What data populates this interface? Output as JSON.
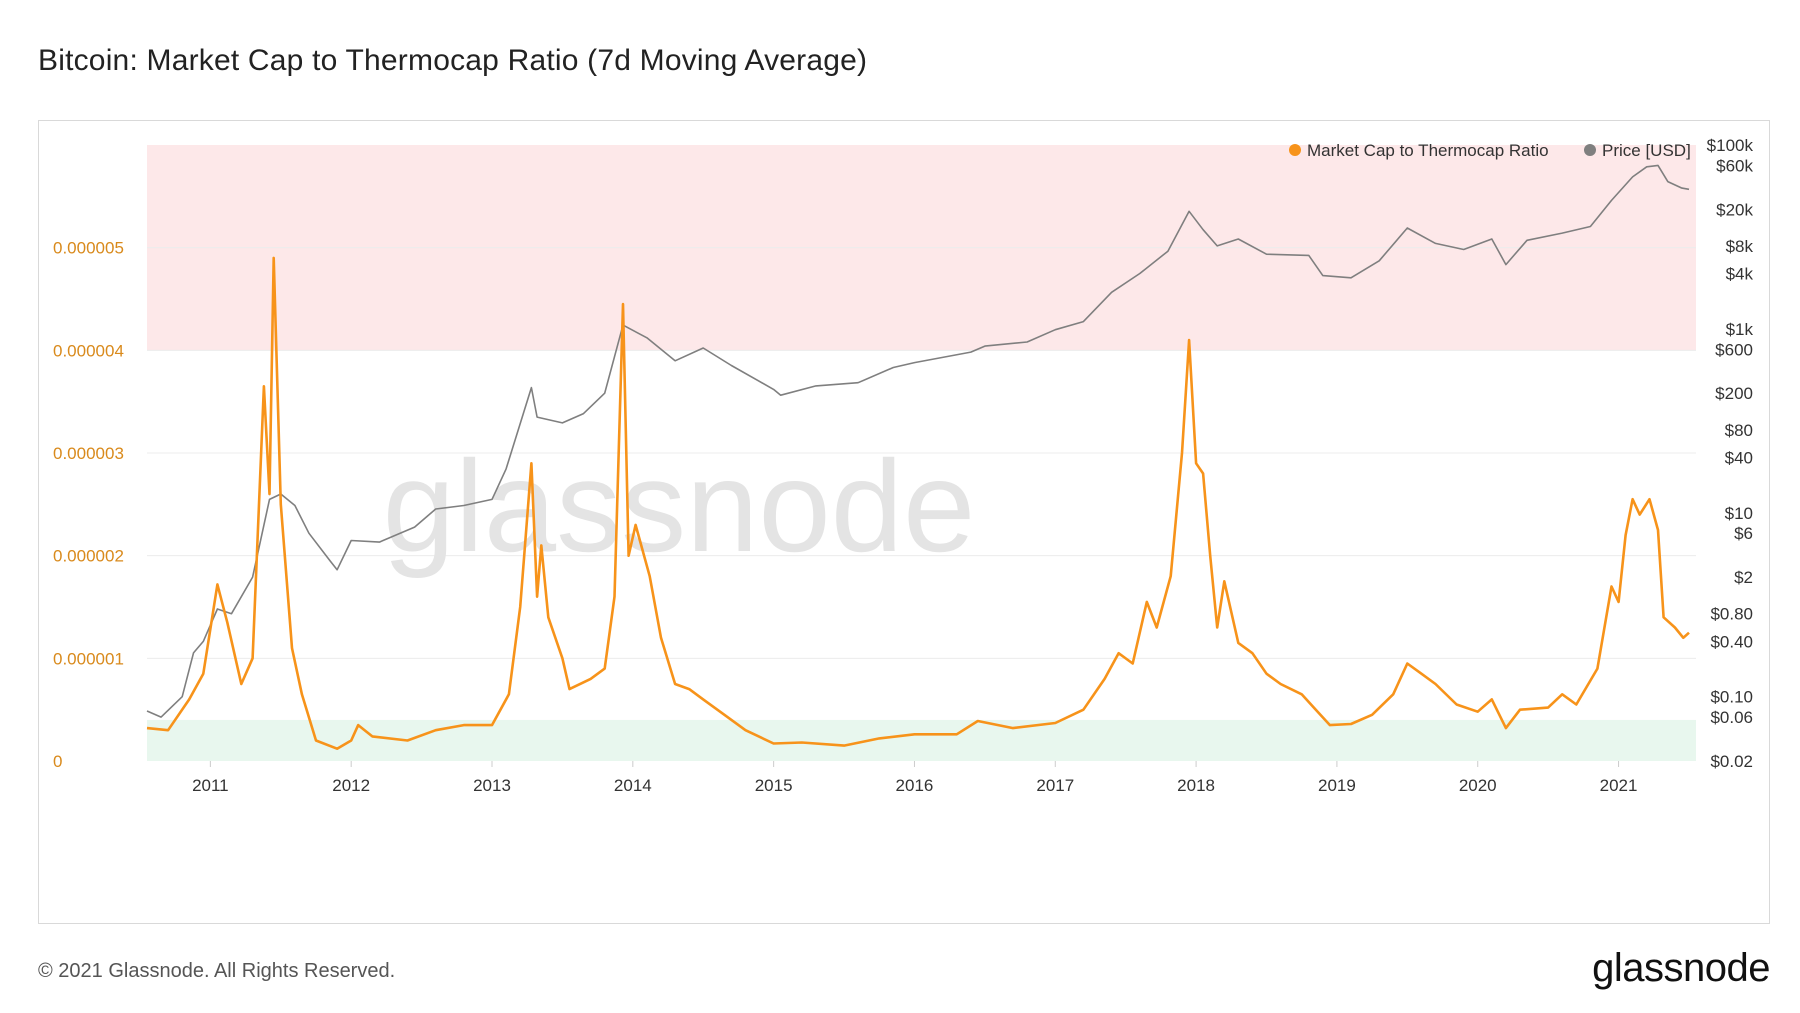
{
  "title": "Bitcoin: Market Cap to Thermocap Ratio (7d Moving Average)",
  "footer": {
    "copyright": "© 2021 Glassnode. All Rights Reserved.",
    "logo": "glassnode"
  },
  "watermark": "glassnode",
  "colors": {
    "ratio": "#f7931a",
    "price": "#7f7f7f",
    "upper_zone": "#fde8e9",
    "lower_zone": "#e8f7ee",
    "left_axis_text": "#d98a1c"
  },
  "chart_data": {
    "type": "line",
    "title": "Bitcoin: Market Cap to Thermocap Ratio (7d Moving Average)",
    "legend": {
      "placement": "top-right",
      "entries": [
        {
          "label": "Market Cap to Thermocap Ratio",
          "color": "#f7931a"
        },
        {
          "label": "Price [USD]",
          "color": "#7f7f7f"
        }
      ]
    },
    "x_range": [
      2010.55,
      2021.55
    ],
    "x_ticks": [
      "2011",
      "2012",
      "2013",
      "2014",
      "2015",
      "2016",
      "2017",
      "2018",
      "2019",
      "2020",
      "2021"
    ],
    "left_axis": {
      "ticks": [
        "0",
        "0.000001",
        "0.000002",
        "0.000003",
        "0.000004",
        "0.000005"
      ],
      "range": [
        0,
        6e-06
      ]
    },
    "right_axis": {
      "scale": "log",
      "ticks": [
        "$100k",
        "$60k",
        "$20k",
        "$8k",
        "$4k",
        "$1k",
        "$600",
        "$200",
        "$80",
        "$40",
        "$10",
        "$6",
        "$2",
        "$0.80",
        "$0.40",
        "$0.10",
        "$0.06",
        "$0.02"
      ],
      "range": [
        0.02,
        100000
      ]
    },
    "zones": [
      {
        "name": "upper",
        "from": 4e-06,
        "to": 6e-06
      },
      {
        "name": "lower",
        "from": 0,
        "to": 4e-07
      }
    ],
    "series": [
      {
        "name": "Market Cap to Thermocap Ratio",
        "axis": "left",
        "points": [
          [
            2010.55,
            3.2e-07
          ],
          [
            2010.7,
            3e-07
          ],
          [
            2010.85,
            6e-07
          ],
          [
            2010.95,
            8.5e-07
          ],
          [
            2011.05,
            1.72e-06
          ],
          [
            2011.12,
            1.35e-06
          ],
          [
            2011.22,
            7.5e-07
          ],
          [
            2011.3,
            1e-06
          ],
          [
            2011.38,
            3.65e-06
          ],
          [
            2011.42,
            2.6e-06
          ],
          [
            2011.45,
            4.9e-06
          ],
          [
            2011.5,
            2.5e-06
          ],
          [
            2011.58,
            1.1e-06
          ],
          [
            2011.65,
            6.5e-07
          ],
          [
            2011.75,
            2e-07
          ],
          [
            2011.9,
            1.2e-07
          ],
          [
            2012.0,
            2e-07
          ],
          [
            2012.05,
            3.5e-07
          ],
          [
            2012.15,
            2.4e-07
          ],
          [
            2012.4,
            2e-07
          ],
          [
            2012.6,
            3e-07
          ],
          [
            2012.8,
            3.5e-07
          ],
          [
            2013.0,
            3.5e-07
          ],
          [
            2013.12,
            6.5e-07
          ],
          [
            2013.2,
            1.5e-06
          ],
          [
            2013.28,
            2.9e-06
          ],
          [
            2013.32,
            1.6e-06
          ],
          [
            2013.35,
            2.1e-06
          ],
          [
            2013.4,
            1.4e-06
          ],
          [
            2013.5,
            1e-06
          ],
          [
            2013.55,
            7e-07
          ],
          [
            2013.7,
            8e-07
          ],
          [
            2013.8,
            9e-07
          ],
          [
            2013.87,
            1.6e-06
          ],
          [
            2013.93,
            4.45e-06
          ],
          [
            2013.97,
            2e-06
          ],
          [
            2014.02,
            2.3e-06
          ],
          [
            2014.12,
            1.8e-06
          ],
          [
            2014.2,
            1.2e-06
          ],
          [
            2014.3,
            7.5e-07
          ],
          [
            2014.4,
            7e-07
          ],
          [
            2014.5,
            6e-07
          ],
          [
            2014.65,
            4.5e-07
          ],
          [
            2014.8,
            3e-07
          ],
          [
            2015.0,
            1.7e-07
          ],
          [
            2015.2,
            1.8e-07
          ],
          [
            2015.5,
            1.5e-07
          ],
          [
            2015.75,
            2.2e-07
          ],
          [
            2016.0,
            2.6e-07
          ],
          [
            2016.3,
            2.6e-07
          ],
          [
            2016.45,
            3.9e-07
          ],
          [
            2016.7,
            3.2e-07
          ],
          [
            2017.0,
            3.7e-07
          ],
          [
            2017.2,
            5e-07
          ],
          [
            2017.35,
            8e-07
          ],
          [
            2017.45,
            1.05e-06
          ],
          [
            2017.55,
            9.5e-07
          ],
          [
            2017.65,
            1.55e-06
          ],
          [
            2017.72,
            1.3e-06
          ],
          [
            2017.82,
            1.8e-06
          ],
          [
            2017.9,
            3e-06
          ],
          [
            2017.95,
            4.1e-06
          ],
          [
            2018.0,
            2.9e-06
          ],
          [
            2018.05,
            2.8e-06
          ],
          [
            2018.1,
            2e-06
          ],
          [
            2018.15,
            1.3e-06
          ],
          [
            2018.2,
            1.75e-06
          ],
          [
            2018.3,
            1.15e-06
          ],
          [
            2018.4,
            1.05e-06
          ],
          [
            2018.5,
            8.5e-07
          ],
          [
            2018.6,
            7.5e-07
          ],
          [
            2018.75,
            6.5e-07
          ],
          [
            2018.85,
            5e-07
          ],
          [
            2018.95,
            3.5e-07
          ],
          [
            2019.1,
            3.6e-07
          ],
          [
            2019.25,
            4.5e-07
          ],
          [
            2019.4,
            6.5e-07
          ],
          [
            2019.5,
            9.5e-07
          ],
          [
            2019.6,
            8.5e-07
          ],
          [
            2019.7,
            7.5e-07
          ],
          [
            2019.85,
            5.5e-07
          ],
          [
            2020.0,
            4.8e-07
          ],
          [
            2020.1,
            6e-07
          ],
          [
            2020.2,
            3.2e-07
          ],
          [
            2020.3,
            5e-07
          ],
          [
            2020.5,
            5.2e-07
          ],
          [
            2020.6,
            6.5e-07
          ],
          [
            2020.7,
            5.5e-07
          ],
          [
            2020.85,
            9e-07
          ],
          [
            2020.95,
            1.7e-06
          ],
          [
            2021.0,
            1.55e-06
          ],
          [
            2021.05,
            2.2e-06
          ],
          [
            2021.1,
            2.55e-06
          ],
          [
            2021.15,
            2.4e-06
          ],
          [
            2021.22,
            2.55e-06
          ],
          [
            2021.28,
            2.25e-06
          ],
          [
            2021.32,
            1.4e-06
          ],
          [
            2021.4,
            1.3e-06
          ],
          [
            2021.46,
            1.2e-06
          ],
          [
            2021.5,
            1.25e-06
          ]
        ]
      },
      {
        "name": "Price [USD]",
        "axis": "right",
        "points": [
          [
            2010.55,
            0.07
          ],
          [
            2010.65,
            0.06
          ],
          [
            2010.8,
            0.1
          ],
          [
            2010.88,
            0.3
          ],
          [
            2010.95,
            0.4
          ],
          [
            2011.05,
            0.9
          ],
          [
            2011.15,
            0.8
          ],
          [
            2011.3,
            2.0
          ],
          [
            2011.42,
            14.0
          ],
          [
            2011.5,
            16.0
          ],
          [
            2011.6,
            12.0
          ],
          [
            2011.7,
            6.0
          ],
          [
            2011.85,
            3.0
          ],
          [
            2011.9,
            2.4
          ],
          [
            2012.0,
            5.0
          ],
          [
            2012.2,
            4.8
          ],
          [
            2012.45,
            7.0
          ],
          [
            2012.6,
            11.0
          ],
          [
            2012.8,
            12.0
          ],
          [
            2013.0,
            14.0
          ],
          [
            2013.1,
            30.0
          ],
          [
            2013.28,
            230.0
          ],
          [
            2013.32,
            110.0
          ],
          [
            2013.5,
            95.0
          ],
          [
            2013.65,
            120.0
          ],
          [
            2013.8,
            200.0
          ],
          [
            2013.93,
            1100.0
          ],
          [
            2014.1,
            800.0
          ],
          [
            2014.3,
            450.0
          ],
          [
            2014.5,
            620.0
          ],
          [
            2014.7,
            400.0
          ],
          [
            2015.0,
            220.0
          ],
          [
            2015.05,
            190.0
          ],
          [
            2015.3,
            240.0
          ],
          [
            2015.6,
            260.0
          ],
          [
            2015.85,
            380.0
          ],
          [
            2016.0,
            430.0
          ],
          [
            2016.4,
            560.0
          ],
          [
            2016.5,
            650.0
          ],
          [
            2016.8,
            720.0
          ],
          [
            2017.0,
            980.0
          ],
          [
            2017.2,
            1200.0
          ],
          [
            2017.4,
            2500.0
          ],
          [
            2017.6,
            4000.0
          ],
          [
            2017.8,
            7000.0
          ],
          [
            2017.95,
            19000.0
          ],
          [
            2018.05,
            12000.0
          ],
          [
            2018.15,
            8000.0
          ],
          [
            2018.3,
            9500.0
          ],
          [
            2018.5,
            6500.0
          ],
          [
            2018.8,
            6300.0
          ],
          [
            2018.9,
            3800.0
          ],
          [
            2019.1,
            3600.0
          ],
          [
            2019.3,
            5500.0
          ],
          [
            2019.5,
            12500.0
          ],
          [
            2019.7,
            8500.0
          ],
          [
            2019.9,
            7300.0
          ],
          [
            2020.1,
            9500.0
          ],
          [
            2020.2,
            5000.0
          ],
          [
            2020.35,
            9200.0
          ],
          [
            2020.6,
            11000.0
          ],
          [
            2020.8,
            13000.0
          ],
          [
            2020.95,
            25000.0
          ],
          [
            2021.1,
            45000.0
          ],
          [
            2021.2,
            58000.0
          ],
          [
            2021.28,
            60000.0
          ],
          [
            2021.35,
            40000.0
          ],
          [
            2021.45,
            34000.0
          ],
          [
            2021.5,
            33000.0
          ]
        ]
      }
    ]
  }
}
